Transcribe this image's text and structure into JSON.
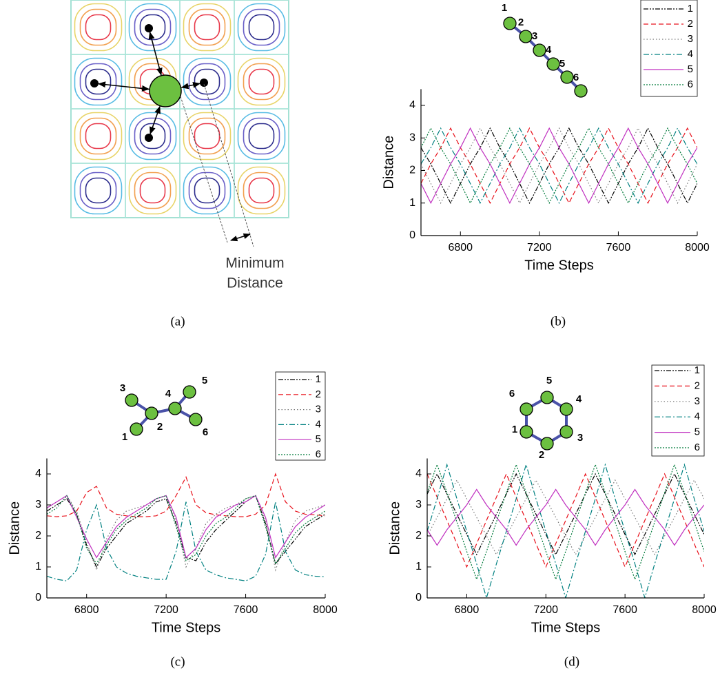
{
  "figure_a": {
    "label": "(a)",
    "annotation_lines": [
      "Minimum",
      "Distance"
    ]
  },
  "chart_data": [
    {
      "type": "line",
      "caption": "(b)",
      "inset_labels": [
        "1",
        "2",
        "3",
        "4",
        "5",
        "6"
      ],
      "xlabel": "Time Steps",
      "ylabel": "Distance",
      "x": [
        6600,
        6650,
        6700,
        6750,
        6800,
        6850,
        6900,
        6950,
        7000,
        7050,
        7100,
        7150,
        7200,
        7250,
        7300,
        7350,
        7400,
        7450,
        7500,
        7550,
        7600,
        7650,
        7700,
        7750,
        7800,
        7850,
        7900,
        7950,
        8000
      ],
      "xlim": [
        6600,
        8000
      ],
      "xticks": [
        6800,
        7200,
        7600,
        8000
      ],
      "ylim": [
        0,
        4.5
      ],
      "yticks": [
        0,
        1,
        2,
        3,
        4
      ],
      "legend": "upper right",
      "series": [
        {
          "name": "1",
          "color": "#000000",
          "dash": "dash-dot-dot",
          "values": [
            2.7,
            2.2,
            1.6,
            1.0,
            1.6,
            2.2,
            2.7,
            3.3,
            2.7,
            2.2,
            1.6,
            1.0,
            1.6,
            2.2,
            2.7,
            3.3,
            2.7,
            2.2,
            1.6,
            1.0,
            1.6,
            2.2,
            2.7,
            3.3,
            2.7,
            2.2,
            1.6,
            1.0,
            1.6
          ]
        },
        {
          "name": "2",
          "color": "#e8101a",
          "dash": "dash",
          "values": [
            1.6,
            2.2,
            2.7,
            3.3,
            2.7,
            2.2,
            1.6,
            1.0,
            1.6,
            2.2,
            2.7,
            3.3,
            2.7,
            2.2,
            1.6,
            1.0,
            1.6,
            2.2,
            2.7,
            3.3,
            2.7,
            2.2,
            1.6,
            1.0,
            1.6,
            2.2,
            2.7,
            3.3,
            2.7
          ]
        },
        {
          "name": "3",
          "color": "#777777",
          "dash": "dot",
          "values": [
            2.2,
            1.6,
            1.0,
            1.6,
            2.2,
            2.7,
            3.3,
            2.7,
            2.2,
            1.6,
            1.0,
            1.6,
            2.2,
            2.7,
            3.3,
            2.7,
            2.2,
            1.6,
            1.0,
            1.6,
            2.2,
            2.7,
            3.3,
            2.7,
            2.2,
            1.6,
            1.0,
            1.6,
            2.2
          ]
        },
        {
          "name": "4",
          "color": "#008080",
          "dash": "dash-dot",
          "values": [
            2.2,
            2.7,
            3.3,
            2.7,
            2.2,
            1.6,
            1.0,
            1.6,
            2.2,
            2.7,
            3.3,
            2.7,
            2.2,
            1.6,
            1.0,
            1.6,
            2.2,
            2.7,
            3.3,
            2.7,
            2.2,
            1.6,
            1.0,
            1.6,
            2.2,
            2.7,
            3.3,
            2.7,
            2.2
          ]
        },
        {
          "name": "5",
          "color": "#c030c0",
          "dash": "solid",
          "values": [
            1.6,
            1.0,
            1.6,
            2.2,
            2.7,
            3.3,
            2.7,
            2.2,
            1.6,
            1.0,
            1.6,
            2.2,
            2.7,
            3.3,
            2.7,
            2.2,
            1.6,
            1.0,
            1.6,
            2.2,
            2.7,
            3.3,
            2.7,
            2.2,
            1.6,
            1.0,
            1.6,
            2.2,
            2.7
          ]
        },
        {
          "name": "6",
          "color": "#007a3a",
          "dash": "short-dot",
          "values": [
            2.7,
            3.3,
            2.7,
            2.2,
            1.6,
            1.0,
            1.6,
            2.2,
            2.7,
            3.3,
            2.7,
            2.2,
            1.6,
            1.0,
            1.6,
            2.2,
            2.7,
            3.3,
            2.7,
            2.2,
            1.6,
            1.0,
            1.6,
            2.2,
            2.7,
            3.3,
            2.7,
            2.2,
            1.6
          ]
        }
      ]
    },
    {
      "type": "line",
      "caption": "(c)",
      "inset_labels": [
        "1",
        "2",
        "3",
        "4",
        "5",
        "6"
      ],
      "xlabel": "Time Steps",
      "ylabel": "Distance",
      "x": [
        6600,
        6650,
        6700,
        6750,
        6800,
        6850,
        6900,
        6950,
        7000,
        7050,
        7100,
        7150,
        7200,
        7250,
        7300,
        7350,
        7400,
        7450,
        7500,
        7550,
        7600,
        7650,
        7700,
        7750,
        7800,
        7850,
        7900,
        7950,
        8000
      ],
      "xlim": [
        6600,
        8000
      ],
      "xticks": [
        6800,
        7200,
        7600,
        8000
      ],
      "ylim": [
        0,
        4.5
      ],
      "yticks": [
        0,
        1,
        2,
        3,
        4
      ],
      "legend": "upper right",
      "series": [
        {
          "name": "1",
          "color": "#000000",
          "dash": "dash-dot-dot",
          "values": [
            2.8,
            3.0,
            3.2,
            2.7,
            1.7,
            1.0,
            1.6,
            2.0,
            2.4,
            2.6,
            2.8,
            3.1,
            3.2,
            2.4,
            1.3,
            1.2,
            1.8,
            2.2,
            2.5,
            2.8,
            3.1,
            3.3,
            2.4,
            1.1,
            1.5,
            1.9,
            2.3,
            2.5,
            2.7
          ]
        },
        {
          "name": "2",
          "color": "#e8101a",
          "dash": "dash",
          "values": [
            2.65,
            2.62,
            2.65,
            2.8,
            3.4,
            3.6,
            2.9,
            2.7,
            2.65,
            2.62,
            2.62,
            2.65,
            2.8,
            3.3,
            3.9,
            3.0,
            2.75,
            2.68,
            2.65,
            2.62,
            2.62,
            2.7,
            3.0,
            4.0,
            3.1,
            2.8,
            2.7,
            2.68,
            2.65
          ]
        },
        {
          "name": "3",
          "color": "#777777",
          "dash": "dot",
          "values": [
            2.9,
            3.1,
            3.3,
            2.8,
            1.8,
            0.9,
            1.9,
            2.5,
            2.8,
            2.9,
            3.0,
            3.2,
            3.3,
            2.5,
            1.0,
            1.6,
            2.4,
            2.7,
            2.9,
            3.0,
            3.2,
            3.3,
            2.5,
            0.9,
            1.8,
            2.5,
            2.8,
            2.9,
            3.0
          ]
        },
        {
          "name": "4",
          "color": "#008080",
          "dash": "dash-dot",
          "values": [
            0.7,
            0.6,
            0.55,
            0.9,
            2.2,
            3.0,
            1.6,
            1.0,
            0.8,
            0.7,
            0.65,
            0.6,
            0.6,
            1.5,
            3.1,
            1.5,
            0.9,
            0.75,
            0.65,
            0.6,
            0.55,
            0.7,
            1.4,
            3.1,
            1.5,
            0.9,
            0.75,
            0.7,
            0.68
          ]
        },
        {
          "name": "5",
          "color": "#c030c0",
          "dash": "solid",
          "values": [
            2.9,
            3.1,
            3.3,
            2.6,
            1.9,
            1.3,
            1.8,
            2.3,
            2.6,
            2.8,
            3.0,
            3.2,
            3.3,
            2.6,
            1.3,
            1.6,
            2.2,
            2.6,
            2.8,
            3.0,
            3.1,
            3.3,
            2.6,
            1.3,
            1.8,
            2.3,
            2.6,
            2.8,
            3.0
          ]
        },
        {
          "name": "6",
          "color": "#007a3a",
          "dash": "short-dot",
          "values": [
            2.7,
            2.9,
            3.3,
            2.7,
            1.6,
            1.1,
            1.7,
            2.2,
            2.5,
            2.7,
            2.9,
            3.2,
            3.3,
            2.3,
            1.2,
            1.4,
            2.0,
            2.4,
            2.6,
            2.9,
            3.2,
            3.3,
            2.3,
            1.1,
            1.6,
            2.1,
            2.4,
            2.6,
            2.8
          ]
        }
      ]
    },
    {
      "type": "line",
      "caption": "(d)",
      "inset_labels": [
        "1",
        "2",
        "3",
        "4",
        "5",
        "6"
      ],
      "xlabel": "Time Steps",
      "ylabel": "Distance",
      "x": [
        6600,
        6650,
        6700,
        6750,
        6800,
        6850,
        6900,
        6950,
        7000,
        7050,
        7100,
        7150,
        7200,
        7250,
        7300,
        7350,
        7400,
        7450,
        7500,
        7550,
        7600,
        7650,
        7700,
        7750,
        7800,
        7850,
        7900,
        7950,
        8000
      ],
      "xlim": [
        6600,
        8000
      ],
      "xticks": [
        6800,
        7200,
        7600,
        8000
      ],
      "ylim": [
        0,
        4.5
      ],
      "yticks": [
        0,
        1,
        2,
        3,
        4
      ],
      "legend": "upper right",
      "series": [
        {
          "name": "1",
          "color": "#000000",
          "dash": "dash-dot-dot",
          "values": [
            3.35,
            4.0,
            3.35,
            2.7,
            2.05,
            1.4,
            2.05,
            2.7,
            3.35,
            4.0,
            3.35,
            2.7,
            2.05,
            1.4,
            2.05,
            2.7,
            3.35,
            4.0,
            3.35,
            2.7,
            2.05,
            1.4,
            2.05,
            2.7,
            3.35,
            4.0,
            3.35,
            2.7,
            2.05
          ]
        },
        {
          "name": "2",
          "color": "#e8101a",
          "dash": "dash",
          "values": [
            4.0,
            3.25,
            2.5,
            1.75,
            1.0,
            1.75,
            2.5,
            3.25,
            4.0,
            3.25,
            2.5,
            1.75,
            1.0,
            1.75,
            2.5,
            3.25,
            4.0,
            3.25,
            2.5,
            1.75,
            1.0,
            1.75,
            2.5,
            3.25,
            4.0,
            3.25,
            2.5,
            1.75,
            1.0
          ]
        },
        {
          "name": "3",
          "color": "#777777",
          "dash": "dot",
          "values": [
            2.0,
            2.6,
            3.2,
            3.8,
            3.2,
            2.6,
            2.0,
            1.4,
            2.0,
            2.6,
            3.2,
            3.8,
            3.2,
            2.6,
            2.0,
            1.4,
            2.0,
            2.6,
            3.2,
            3.8,
            3.2,
            2.6,
            2.0,
            1.4,
            2.0,
            2.6,
            3.2,
            3.8,
            3.2
          ]
        },
        {
          "name": "4",
          "color": "#008080",
          "dash": "dash-dot",
          "values": [
            2.15,
            3.2,
            4.3,
            3.2,
            2.15,
            1.1,
            0.0,
            1.1,
            2.15,
            3.2,
            4.3,
            3.2,
            2.15,
            1.1,
            0.0,
            1.1,
            2.15,
            3.2,
            4.3,
            3.2,
            2.15,
            1.1,
            0.0,
            1.1,
            2.15,
            3.2,
            4.3,
            3.2,
            2.15
          ]
        },
        {
          "name": "5",
          "color": "#c030c0",
          "dash": "solid",
          "values": [
            2.2,
            1.7,
            2.2,
            2.6,
            3.0,
            3.5,
            3.0,
            2.6,
            2.2,
            1.7,
            2.2,
            2.6,
            3.0,
            3.5,
            3.0,
            2.6,
            2.2,
            1.7,
            2.2,
            2.6,
            3.0,
            3.5,
            3.0,
            2.6,
            2.2,
            1.7,
            2.2,
            2.6,
            3.0
          ]
        },
        {
          "name": "6",
          "color": "#007a3a",
          "dash": "short-dot",
          "values": [
            3.4,
            4.3,
            3.4,
            2.45,
            1.5,
            0.6,
            1.5,
            2.45,
            3.4,
            4.3,
            3.4,
            2.45,
            1.5,
            0.6,
            1.5,
            2.45,
            3.4,
            4.3,
            3.4,
            2.45,
            1.5,
            0.6,
            1.5,
            2.45,
            3.4,
            4.3,
            3.4,
            2.45,
            1.5
          ]
        }
      ]
    }
  ]
}
